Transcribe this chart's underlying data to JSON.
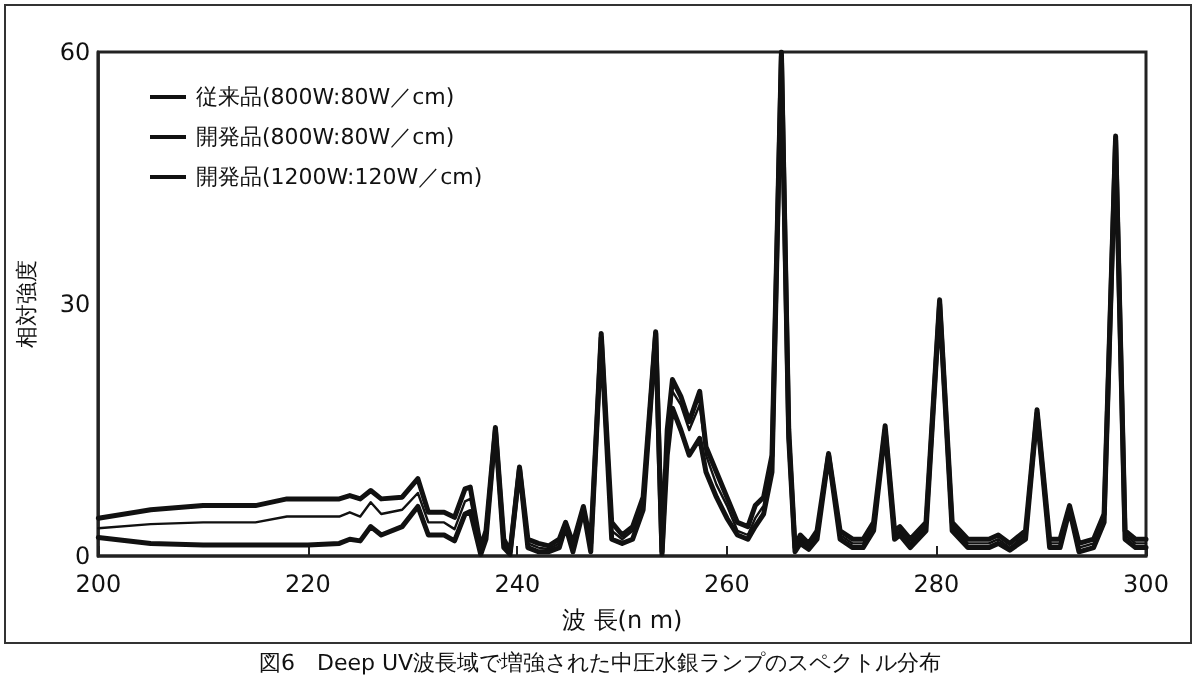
{
  "chart_data": {
    "type": "line",
    "xlabel": "波 長(n m)",
    "ylabel": "相対強度",
    "annotations": [
      "図6　Deep UV波長域で増強された中圧水銀ランプのスペクトル分布"
    ],
    "x": [
      200,
      205,
      210,
      215,
      218,
      220,
      223,
      224,
      225,
      226,
      227,
      229,
      230.5,
      231.5,
      233,
      234,
      235,
      235.5,
      236.5,
      237,
      237.9,
      238.7,
      239.3,
      240.2,
      241,
      242,
      243,
      244,
      244.6,
      245.3,
      246.3,
      247,
      248,
      249,
      250,
      251,
      252,
      253.2,
      253.8,
      254.3,
      254.8,
      255.6,
      256.4,
      257.4,
      258,
      259,
      260,
      261,
      262,
      262.7,
      263.5,
      264.3,
      265.2,
      265.9,
      266.5,
      267,
      267.8,
      268.6,
      269.7,
      270.8,
      272,
      273,
      274,
      275.1,
      276,
      276.5,
      277.5,
      279,
      280.3,
      281.5,
      283,
      285,
      285.9,
      287,
      288.5,
      289.6,
      290.8,
      291.8,
      292.7,
      293.6,
      295,
      296,
      297.1,
      298,
      299,
      300
    ],
    "series": [
      {
        "name": "従来品(800W:80W／cm)",
        "color": "#111111",
        "values": [
          2.2,
          1.5,
          1.3,
          1.3,
          1.3,
          1.3,
          1.5,
          2,
          1.8,
          3.5,
          2.5,
          3.5,
          5.9,
          2.5,
          2.5,
          1.8,
          5,
          5.3,
          0.2,
          2,
          15,
          1,
          0.2,
          10.4,
          1,
          0.5,
          0.5,
          1,
          3.5,
          0.5,
          5.5,
          0.5,
          26,
          2,
          1.5,
          2,
          5.5,
          26.5,
          0.2,
          12,
          17.6,
          15,
          12,
          14,
          10,
          7,
          4.5,
          2.5,
          2,
          3.5,
          5,
          10,
          59.5,
          14,
          0.5,
          1.5,
          0.8,
          2,
          12,
          2,
          1,
          1,
          3,
          15,
          2,
          2.5,
          1,
          3,
          30,
          3,
          1,
          1,
          1.5,
          0.7,
          2,
          17,
          1,
          1,
          5.5,
          0.5,
          1,
          4,
          49.5,
          2,
          1,
          1
        ]
      },
      {
        "name": "開発品(800W:80W／cm)",
        "color": "#111111",
        "values": [
          3.3,
          3.8,
          4,
          4,
          4.7,
          4.7,
          4.7,
          5.2,
          4.7,
          6.4,
          5,
          5.5,
          7.5,
          4,
          4,
          3.2,
          6.5,
          6.8,
          0.5,
          2.5,
          15.3,
          1.5,
          0.3,
          10.6,
          1.5,
          1,
          0.8,
          1.5,
          4,
          1,
          5.9,
          1,
          26.5,
          3,
          2,
          3,
          6.5,
          26.7,
          0.3,
          14,
          19.6,
          18,
          15,
          18,
          12,
          8.5,
          6,
          3,
          2.5,
          4.5,
          6,
          11,
          60,
          15,
          0.8,
          2,
          1,
          2.5,
          12.2,
          2.5,
          1.5,
          1.5,
          3.5,
          15.5,
          2.5,
          3,
          1.5,
          3.5,
          30.5,
          3.5,
          1.5,
          1.5,
          2,
          1,
          2.5,
          17.4,
          1.5,
          1.5,
          6,
          1,
          1.5,
          4.5,
          50,
          2.5,
          1.5,
          1.5
        ]
      },
      {
        "name": "開発品(1200W:120W／cm)",
        "color": "#111111",
        "values": [
          4.5,
          5.5,
          6,
          6,
          6.8,
          6.8,
          6.8,
          7.2,
          6.8,
          7.8,
          6.8,
          7,
          9.2,
          5.2,
          5.2,
          4.6,
          8,
          8.2,
          1,
          3,
          15.3,
          2,
          0.5,
          10.6,
          2,
          1.5,
          1.2,
          2,
          4,
          1.5,
          5.9,
          1.5,
          26.5,
          4,
          2.5,
          3.5,
          7,
          26.7,
          0.5,
          15,
          21,
          19,
          16,
          19.6,
          13,
          10,
          7,
          4,
          3.5,
          6,
          7,
          12,
          60,
          15,
          1,
          2.5,
          1.5,
          3,
          12.2,
          3,
          2,
          2,
          4,
          15.5,
          3,
          3.5,
          2,
          4,
          30.5,
          4,
          2,
          2,
          2.5,
          1.5,
          3,
          17.4,
          2,
          2,
          6,
          1.5,
          2,
          5,
          50,
          3,
          2,
          2
        ]
      }
    ],
    "xlim": [
      200,
      300
    ],
    "xticks": [
      200,
      220,
      240,
      260,
      280,
      300
    ],
    "ylim": [
      0,
      60
    ],
    "yticks": [
      0,
      30,
      60
    ],
    "grid": false,
    "legend": "top left",
    "marker": "none",
    "line_style": "solid"
  }
}
